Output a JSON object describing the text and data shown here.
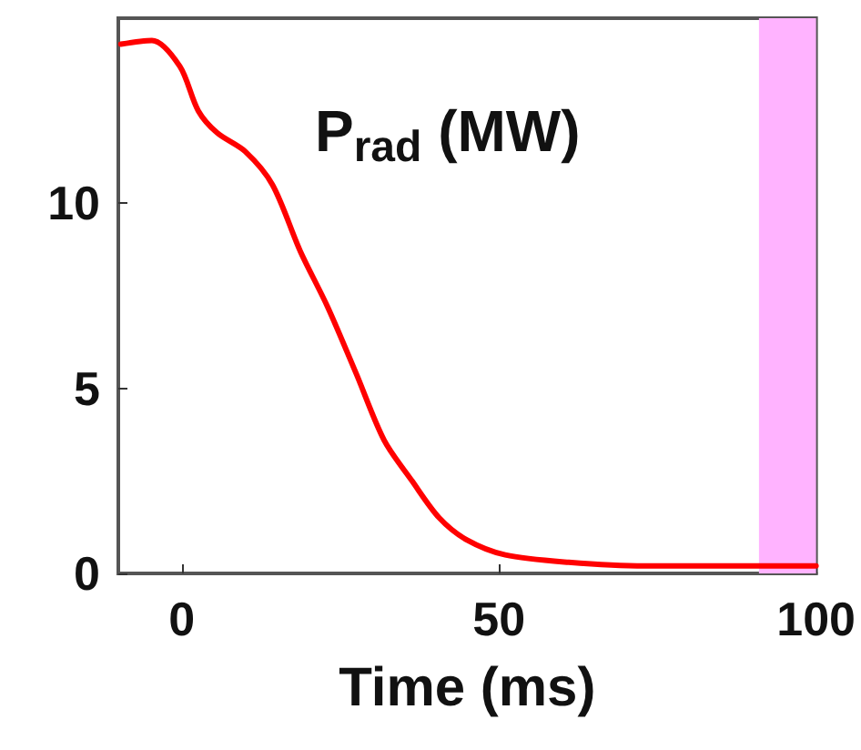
{
  "chart_data": {
    "type": "line",
    "title": "P$_{rad}$ (MW)",
    "xlabel": "Time (ms)",
    "xlim": [
      -10,
      100
    ],
    "xticks": [
      0,
      50,
      100
    ],
    "ylim": [
      0,
      15
    ],
    "yticks": [
      0,
      5,
      10
    ],
    "grid": false,
    "x": [
      -9.6,
      -4.7,
      -0.3,
      2.6,
      5.6,
      10,
      14.3,
      18.7,
      23,
      27.5,
      31.9,
      36.3,
      40.6,
      45,
      51,
      61,
      73,
      100
    ],
    "series": [
      {
        "color": "#ff0000",
        "values": [
          14.3,
          14.4,
          13.7,
          12.5,
          11.9,
          11.4,
          10.5,
          8.7,
          7.2,
          5.4,
          3.6,
          2.5,
          1.5,
          0.9,
          0.5,
          0.3,
          0.2,
          0.2
        ]
      }
    ],
    "bands": [
      {
        "axis": "x",
        "from": 91,
        "to": 100,
        "color": "#ffb3ff"
      }
    ]
  }
}
